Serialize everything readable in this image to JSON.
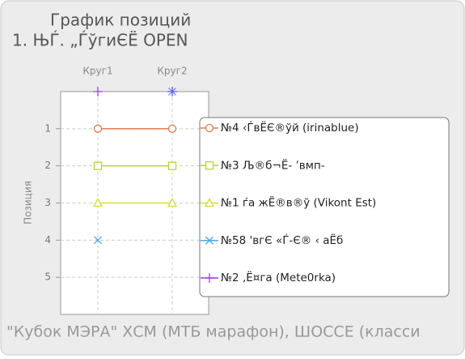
{
  "chart_data": {
    "type": "line",
    "title": "График позиций",
    "subtitle": "1. ЊЃ. „ЃўгиЄЁ OPEN",
    "ylabel": "Позиция",
    "footer": "\"Кубок МЭРА\" ХСМ (МТБ марафон), ШОССЕ (класси",
    "categories": [
      "Круг1",
      "Круг2"
    ],
    "ylim": [
      0,
      6
    ],
    "inverted": true,
    "yticks": [
      1,
      2,
      3,
      4,
      5
    ],
    "grid": true,
    "series": [
      {
        "name": "№4 ‹ЃвЁЄ®ўй  (irinablue)",
        "color": "#e07a4e",
        "marker": "circle",
        "values": [
          1,
          1
        ]
      },
      {
        "name": "№3 Љ®б¬Ё-  ’вмп-",
        "color": "#b3d631",
        "marker": "square",
        "values": [
          2,
          2
        ]
      },
      {
        "name": "№1 ѓа жЁ®в®ў  (Vikont Est)",
        "color": "#d9d93a",
        "marker": "triangle",
        "values": [
          3,
          3
        ]
      },
      {
        "name": "№58 'вгЄ «Ѓ-Є® ‹ аЁб",
        "color": "#4aa8e8",
        "marker": "x",
        "values": [
          4,
          0
        ]
      },
      {
        "name": "№2 ‚Ё¤га (Mete0rka)",
        "color": "#9a3cf0",
        "marker": "plus",
        "values": [
          0,
          0
        ]
      }
    ]
  }
}
